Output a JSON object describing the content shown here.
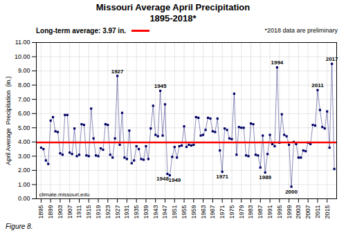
{
  "chart_data": {
    "type": "line",
    "title": "Missouri Average April Precipitation",
    "subtitle": "1895-2018*",
    "ylabel": "April Average  Precipitation  (in.)",
    "note": "*2018 data are preliminary",
    "source": "climate.missouri.edu",
    "caption": "Figure 8.",
    "color": "#000066",
    "marker": "square",
    "grid": true,
    "hlines": [
      {
        "value": 3.97,
        "name": "Long-term average: 3.97 in.",
        "color": "#FF0000"
      }
    ],
    "xlim": [
      1893,
      2019
    ],
    "xticks": [
      1895,
      1899,
      1903,
      1907,
      1911,
      1915,
      1919,
      1923,
      1927,
      1931,
      1935,
      1939,
      1943,
      1947,
      1951,
      1955,
      1959,
      1963,
      1967,
      1971,
      1975,
      1979,
      1983,
      1987,
      1991,
      1995,
      1999,
      2003,
      2007,
      2011,
      2015
    ],
    "ylim": [
      0.0,
      11.0
    ],
    "yticks": [
      {
        "value": 0,
        "label": "0.00"
      },
      {
        "value": 1,
        "label": "1.00"
      },
      {
        "value": 2,
        "label": "2.00"
      },
      {
        "value": 3,
        "label": "3.00"
      },
      {
        "value": 4,
        "label": "4.00"
      },
      {
        "value": 5,
        "label": "5.00"
      },
      {
        "value": 6,
        "label": "6.00"
      },
      {
        "value": 7,
        "label": "7.00"
      },
      {
        "value": 8,
        "label": "8.00"
      },
      {
        "value": 9,
        "label": "9.00"
      },
      {
        "value": 10,
        "label": "10.00"
      },
      {
        "value": 11,
        "label": "11.00"
      }
    ],
    "annotations": [
      {
        "text": "1927",
        "x": 1927,
        "y": 8.65
      },
      {
        "text": "1945",
        "x": 1945,
        "y": 7.6
      },
      {
        "text": "1948",
        "x": 1948,
        "y": 1.75
      },
      {
        "text": "1949",
        "x": 1949,
        "y": 1.65
      },
      {
        "text": "1971",
        "x": 1971,
        "y": 1.9
      },
      {
        "text": "1989",
        "x": 1989,
        "y": 1.85
      },
      {
        "text": "1994",
        "x": 1994,
        "y": 9.25
      },
      {
        "text": "2000",
        "x": 2000,
        "y": 0.85
      },
      {
        "text": "2011",
        "x": 2011,
        "y": 7.65
      },
      {
        "text": "2017",
        "x": 2017,
        "y": 9.5
      }
    ],
    "x": [
      1895,
      1896,
      1897,
      1898,
      1899,
      1900,
      1901,
      1902,
      1903,
      1904,
      1905,
      1906,
      1907,
      1908,
      1909,
      1910,
      1911,
      1912,
      1913,
      1914,
      1915,
      1916,
      1917,
      1918,
      1919,
      1920,
      1921,
      1922,
      1923,
      1924,
      1925,
      1926,
      1927,
      1928,
      1929,
      1930,
      1931,
      1932,
      1933,
      1934,
      1935,
      1936,
      1937,
      1938,
      1939,
      1940,
      1941,
      1942,
      1943,
      1944,
      1945,
      1946,
      1947,
      1948,
      1949,
      1950,
      1951,
      1952,
      1953,
      1954,
      1955,
      1956,
      1957,
      1958,
      1959,
      1960,
      1961,
      1962,
      1963,
      1964,
      1965,
      1966,
      1967,
      1968,
      1969,
      1970,
      1971,
      1972,
      1973,
      1974,
      1975,
      1976,
      1977,
      1978,
      1979,
      1980,
      1981,
      1982,
      1983,
      1984,
      1985,
      1986,
      1987,
      1988,
      1989,
      1990,
      1991,
      1992,
      1993,
      1994,
      1995,
      1996,
      1997,
      1998,
      1999,
      2000,
      2001,
      2002,
      2003,
      2004,
      2005,
      2006,
      2007,
      2008,
      2009,
      2010,
      2011,
      2012,
      2013,
      2014,
      2015,
      2016,
      2017,
      2018
    ],
    "values": [
      3.6,
      3.5,
      2.7,
      2.45,
      5.5,
      5.75,
      4.75,
      4.7,
      3.2,
      3.1,
      5.9,
      5.9,
      3.25,
      3.15,
      4.95,
      3.0,
      3.1,
      5.25,
      5.2,
      3.05,
      3.0,
      6.35,
      4.25,
      3.05,
      3.0,
      3.55,
      3.45,
      5.25,
      5.2,
      3.1,
      2.9,
      4.25,
      8.65,
      3.8,
      6.05,
      2.9,
      2.8,
      4.8,
      2.5,
      2.7,
      3.7,
      3.5,
      2.8,
      2.75,
      3.7,
      2.8,
      4.95,
      6.55,
      4.5,
      4.4,
      7.6,
      4.45,
      6.65,
      1.75,
      1.65,
      2.95,
      3.65,
      2.9,
      3.7,
      3.75,
      5.1,
      3.65,
      3.8,
      3.75,
      3.8,
      5.75,
      5.7,
      4.45,
      4.5,
      4.85,
      5.7,
      5.65,
      4.75,
      4.7,
      5.65,
      3.4,
      1.9,
      4.95,
      4.85,
      4.25,
      4.2,
      7.4,
      3.1,
      5.05,
      5.0,
      5.0,
      3.05,
      3.0,
      5.3,
      5.25,
      3.1,
      3.05,
      2.2,
      4.45,
      1.85,
      3.15,
      4.5,
      3.85,
      3.7,
      9.25,
      3.95,
      5.95,
      4.5,
      4.4,
      3.8,
      0.85,
      4.0,
      3.85,
      2.9,
      2.9,
      3.4,
      3.35,
      3.95,
      3.85,
      5.2,
      5.15,
      7.65,
      6.25,
      5.05,
      4.95,
      6.15,
      3.6,
      9.5,
      2.1
    ]
  }
}
